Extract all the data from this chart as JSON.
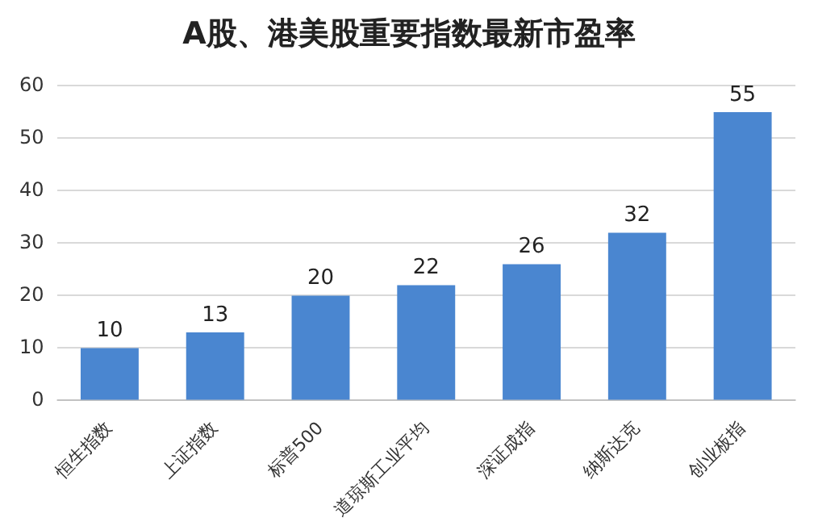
{
  "chart_data": {
    "type": "bar",
    "title": "A股、港美股重要指数最新市盈率",
    "categories": [
      "恒生指数",
      "上证指数",
      "标普500",
      "道琼斯工业平均",
      "深证成指",
      "纳斯达克",
      "创业板指"
    ],
    "values": [
      10,
      13,
      20,
      22,
      26,
      32,
      55
    ],
    "color": "#4a86d0",
    "ylim": [
      0,
      60
    ],
    "yticks": [
      0,
      10,
      20,
      30,
      40,
      50,
      60
    ],
    "grid": "y",
    "data_labels": true,
    "legend": false
  }
}
